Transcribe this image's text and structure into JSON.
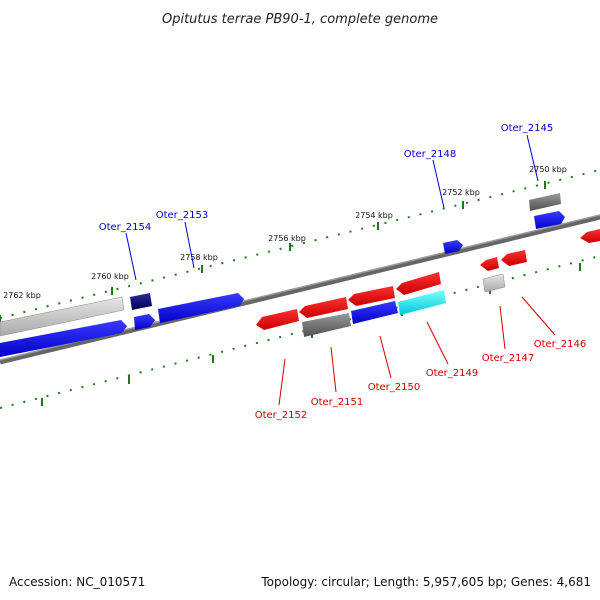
{
  "title": "Opitutus terrae PB90-1, complete genome",
  "footer": {
    "accession": "Accession: NC_010571",
    "summary": "Topology: circular; Length: 5,957,605 bp; Genes: 4,681"
  },
  "colors": {
    "forward": "#0000ee",
    "reverse": "#ee0000",
    "forward_label": "#0000cc",
    "reverse_label": "#cc0000",
    "tick": "#1a7a1a",
    "backbone": "#777777"
  },
  "ticks": [
    {
      "label": "2750 kbp"
    },
    {
      "label": "2752 kbp"
    },
    {
      "label": "2754 kbp"
    },
    {
      "label": "2756 kbp"
    },
    {
      "label": "2758 kbp"
    },
    {
      "label": "2760 kbp"
    },
    {
      "label": "2762 kbp"
    }
  ],
  "gene_labels": [
    {
      "name": "Oter_2145",
      "strand": "forward"
    },
    {
      "name": "Oter_2148",
      "strand": "forward"
    },
    {
      "name": "Oter_2153",
      "strand": "forward"
    },
    {
      "name": "Oter_2154",
      "strand": "forward"
    },
    {
      "name": "Oter_2146",
      "strand": "reverse"
    },
    {
      "name": "Oter_2147",
      "strand": "reverse"
    },
    {
      "name": "Oter_2149",
      "strand": "reverse"
    },
    {
      "name": "Oter_2150",
      "strand": "reverse"
    },
    {
      "name": "Oter_2151",
      "strand": "reverse"
    },
    {
      "name": "Oter_2152",
      "strand": "reverse"
    }
  ]
}
